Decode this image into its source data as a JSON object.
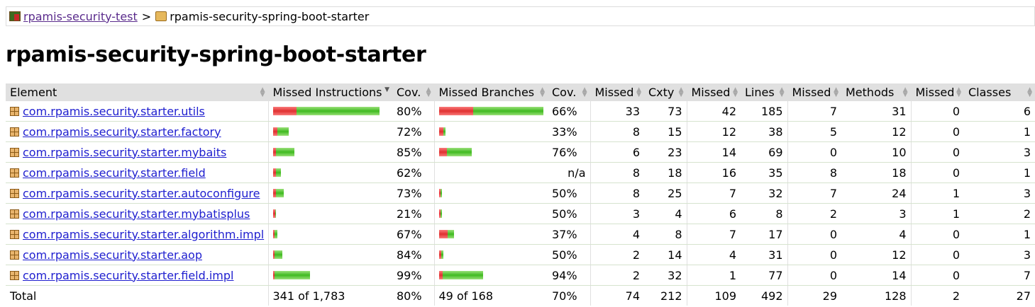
{
  "breadcrumb": {
    "root": "rpamis-security-test",
    "separator": ">",
    "current": "rpamis-security-spring-boot-starter"
  },
  "title": "rpamis-security-spring-boot-starter",
  "columns": [
    "Element",
    "Missed Instructions",
    "Cov.",
    "Missed Branches",
    "Cov.",
    "Missed",
    "Cxty",
    "Missed",
    "Lines",
    "Missed",
    "Methods",
    "Missed",
    "Classes"
  ],
  "colors": {
    "missed": "#e03030",
    "covered": "#3fba20",
    "link": "#1e1ecf"
  },
  "rows": [
    {
      "element": "com.rpamis.security.starter.utils",
      "instr_missed": 33,
      "instr_covered": 117,
      "icov": "80%",
      "br_missed": 33,
      "br_covered": 67,
      "bcov": "66%",
      "cx_missed": "33",
      "cxty": "73",
      "ln_missed": "42",
      "lines": "185",
      "m_missed": "7",
      "methods": "31",
      "c_missed": "0",
      "classes": "6"
    },
    {
      "element": "com.rpamis.security.starter.factory",
      "instr_missed": 6,
      "instr_covered": 16,
      "icov": "72%",
      "br_missed": 4,
      "br_covered": 2,
      "bcov": "33%",
      "cx_missed": "8",
      "cxty": "15",
      "ln_missed": "12",
      "lines": "38",
      "m_missed": "5",
      "methods": "12",
      "c_missed": "0",
      "classes": "1"
    },
    {
      "element": "com.rpamis.security.starter.mybaits",
      "instr_missed": 4,
      "instr_covered": 26,
      "icov": "85%",
      "br_missed": 7,
      "br_covered": 23,
      "bcov": "76%",
      "cx_missed": "6",
      "cxty": "23",
      "ln_missed": "14",
      "lines": "69",
      "m_missed": "0",
      "methods": "10",
      "c_missed": "0",
      "classes": "3"
    },
    {
      "element": "com.rpamis.security.starter.field",
      "instr_missed": 4,
      "instr_covered": 7,
      "icov": "62%",
      "br_missed": 0,
      "br_covered": 0,
      "bcov": "n/a",
      "cx_missed": "8",
      "cxty": "18",
      "ln_missed": "16",
      "lines": "35",
      "m_missed": "8",
      "methods": "18",
      "c_missed": "0",
      "classes": "1"
    },
    {
      "element": "com.rpamis.security.starter.autoconfigure",
      "instr_missed": 4,
      "instr_covered": 11,
      "icov": "73%",
      "br_missed": 1,
      "br_covered": 1,
      "bcov": "50%",
      "cx_missed": "8",
      "cxty": "25",
      "ln_missed": "7",
      "lines": "32",
      "m_missed": "7",
      "methods": "24",
      "c_missed": "1",
      "classes": "3"
    },
    {
      "element": "com.rpamis.security.starter.mybatisplus",
      "instr_missed": 3,
      "instr_covered": 1,
      "icov": "21%",
      "br_missed": 1,
      "br_covered": 1,
      "bcov": "50%",
      "cx_missed": "3",
      "cxty": "4",
      "ln_missed": "6",
      "lines": "8",
      "m_missed": "2",
      "methods": "3",
      "c_missed": "1",
      "classes": "2"
    },
    {
      "element": "com.rpamis.security.starter.algorithm.impl",
      "instr_missed": 2,
      "instr_covered": 4,
      "icov": "67%",
      "br_missed": 8,
      "br_covered": 6,
      "bcov": "37%",
      "cx_missed": "4",
      "cxty": "8",
      "ln_missed": "7",
      "lines": "17",
      "m_missed": "0",
      "methods": "4",
      "c_missed": "0",
      "classes": "1"
    },
    {
      "element": "com.rpamis.security.starter.aop",
      "instr_missed": 2,
      "instr_covered": 11,
      "icov": "84%",
      "br_missed": 2,
      "br_covered": 2,
      "bcov": "50%",
      "cx_missed": "2",
      "cxty": "14",
      "ln_missed": "4",
      "lines": "31",
      "m_missed": "0",
      "methods": "12",
      "c_missed": "0",
      "classes": "3"
    },
    {
      "element": "com.rpamis.security.starter.field.impl",
      "instr_missed": 1,
      "instr_covered": 50,
      "icov": "99%",
      "br_missed": 3,
      "br_covered": 38,
      "bcov": "94%",
      "cx_missed": "2",
      "cxty": "32",
      "ln_missed": "1",
      "lines": "77",
      "m_missed": "0",
      "methods": "14",
      "c_missed": "0",
      "classes": "7"
    }
  ],
  "total": {
    "label": "Total",
    "instr": "341 of 1,783",
    "icov": "80%",
    "br": "49 of 168",
    "bcov": "70%",
    "cx_missed": "74",
    "cxty": "212",
    "ln_missed": "109",
    "lines": "492",
    "m_missed": "29",
    "methods": "128",
    "c_missed": "2",
    "classes": "27"
  }
}
